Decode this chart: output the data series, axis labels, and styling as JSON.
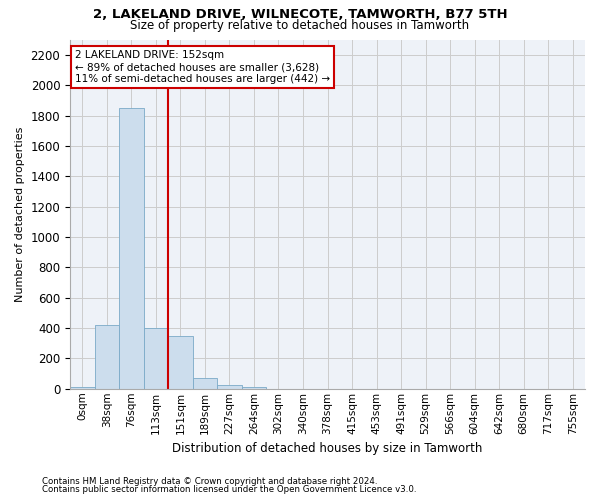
{
  "title1": "2, LAKELAND DRIVE, WILNECOTE, TAMWORTH, B77 5TH",
  "title2": "Size of property relative to detached houses in Tamworth",
  "xlabel": "Distribution of detached houses by size in Tamworth",
  "ylabel": "Number of detached properties",
  "bar_labels": [
    "0sqm",
    "38sqm",
    "76sqm",
    "113sqm",
    "151sqm",
    "189sqm",
    "227sqm",
    "264sqm",
    "302sqm",
    "340sqm",
    "378sqm",
    "415sqm",
    "453sqm",
    "491sqm",
    "529sqm",
    "566sqm",
    "604sqm",
    "642sqm",
    "680sqm",
    "717sqm",
    "755sqm"
  ],
  "bar_values": [
    10,
    420,
    1850,
    400,
    350,
    70,
    25,
    10,
    0,
    0,
    0,
    0,
    0,
    0,
    0,
    0,
    0,
    0,
    0,
    0,
    0
  ],
  "bar_color": "#ccdded",
  "bar_edge_color": "#7aaac8",
  "property_bar_index": 4,
  "property_line_color": "#cc0000",
  "annotation_text": "2 LAKELAND DRIVE: 152sqm\n← 89% of detached houses are smaller (3,628)\n11% of semi-detached houses are larger (442) →",
  "annotation_box_facecolor": "white",
  "annotation_box_edgecolor": "#cc0000",
  "ylim": [
    0,
    2300
  ],
  "yticks": [
    0,
    200,
    400,
    600,
    800,
    1000,
    1200,
    1400,
    1600,
    1800,
    2000,
    2200
  ],
  "grid_color": "#cccccc",
  "bg_color": "#eef2f8",
  "footnote1": "Contains HM Land Registry data © Crown copyright and database right 2024.",
  "footnote2": "Contains public sector information licensed under the Open Government Licence v3.0.",
  "fig_width": 6.0,
  "fig_height": 5.0,
  "dpi": 100
}
